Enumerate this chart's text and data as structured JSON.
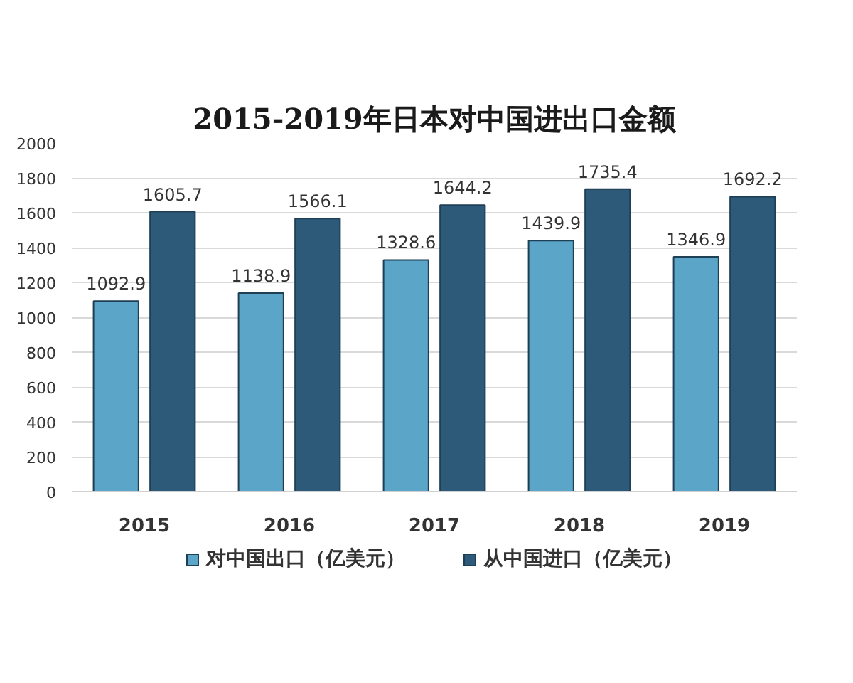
{
  "chart_data": {
    "type": "bar",
    "title": "2015-2019年日本对中国进出口金额",
    "categories": [
      "2015",
      "2016",
      "2017",
      "2018",
      "2019"
    ],
    "series": [
      {
        "name": "对中国出口（亿美元）",
        "color": "#5aa5c8",
        "values": [
          1092.9,
          1138.9,
          1328.6,
          1439.9,
          1346.9
        ]
      },
      {
        "name": "从中国进口（亿美元）",
        "color": "#2c5a78",
        "values": [
          1605.7,
          1566.1,
          1644.2,
          1735.4,
          1692.2
        ]
      }
    ],
    "ylim": [
      0,
      2000
    ],
    "yticks": [
      0,
      200,
      400,
      600,
      800,
      1000,
      1200,
      1400,
      1600,
      1800,
      2000
    ],
    "grid": "y",
    "legend": "bottom",
    "data_labels": true
  }
}
